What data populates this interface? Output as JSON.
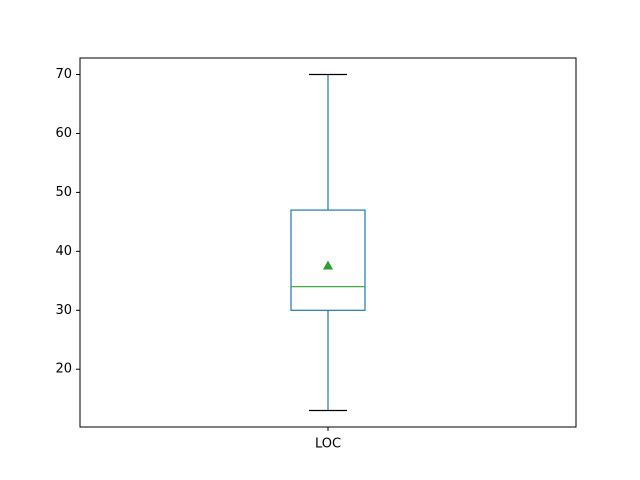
{
  "chart_data": {
    "type": "box",
    "categories": [
      "LOC"
    ],
    "ylim": [
      10.2,
      72.8
    ],
    "yticks": [
      20,
      30,
      40,
      50,
      60,
      70
    ],
    "ytick_labels": [
      "20",
      "30",
      "40",
      "50",
      "60",
      "70"
    ],
    "boxes": [
      {
        "label": "LOC",
        "whisker_low": 13,
        "q1": 30,
        "median": 34,
        "q3": 47,
        "whisker_high": 70,
        "mean": 37.6
      }
    ],
    "grid": false,
    "colors": {
      "box": "#1f77b4",
      "median": "#2ca02c",
      "mean_marker": "#2ca02c",
      "axes": "#000000"
    }
  }
}
